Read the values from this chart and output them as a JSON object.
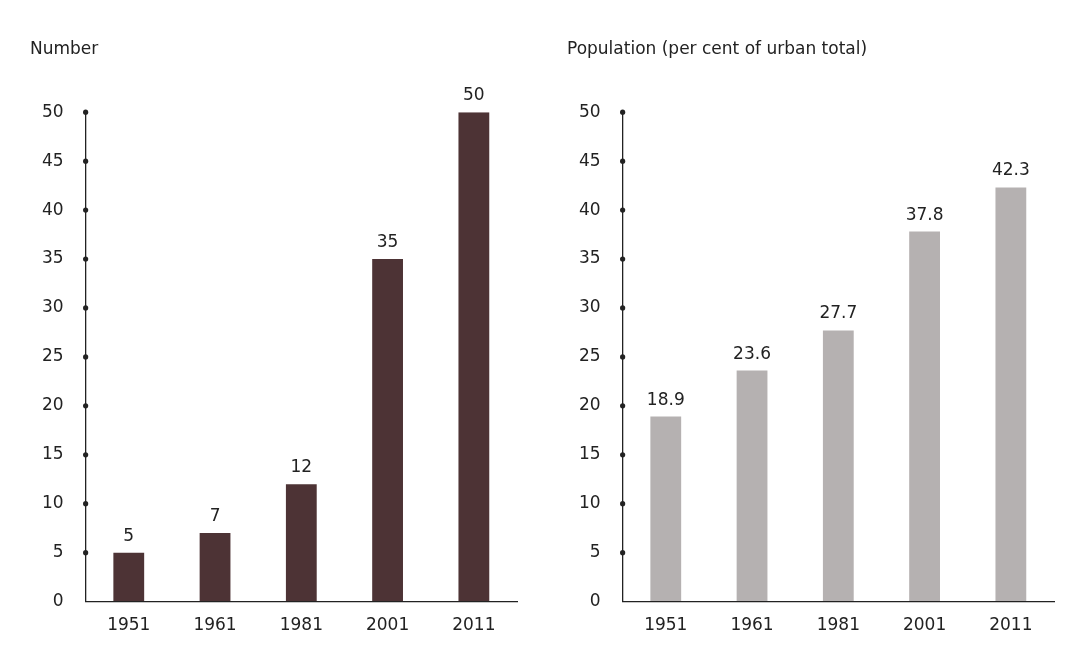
{
  "chart_data": [
    {
      "type": "bar",
      "ylabel": "Number",
      "categories": [
        "1951",
        "1961",
        "1981",
        "2001",
        "2011"
      ],
      "values": [
        5,
        7,
        12,
        35,
        50
      ],
      "color": "#4d3335",
      "ylim": [
        0,
        50
      ],
      "yticks": [
        0,
        5,
        10,
        15,
        20,
        25,
        30,
        35,
        40,
        45,
        50
      ],
      "grid": false,
      "legend": false,
      "data_labels": true
    },
    {
      "type": "bar",
      "ylabel": "Population (per cent of urban total)",
      "categories": [
        "1951",
        "1961",
        "1981",
        "2001",
        "2011"
      ],
      "values": [
        18.9,
        23.6,
        27.7,
        37.8,
        42.3
      ],
      "color": "#b5b1b1",
      "ylim": [
        0,
        50
      ],
      "yticks": [
        0,
        5,
        10,
        15,
        20,
        25,
        30,
        35,
        40,
        45,
        50
      ],
      "grid": false,
      "legend": false,
      "data_labels": true
    }
  ]
}
